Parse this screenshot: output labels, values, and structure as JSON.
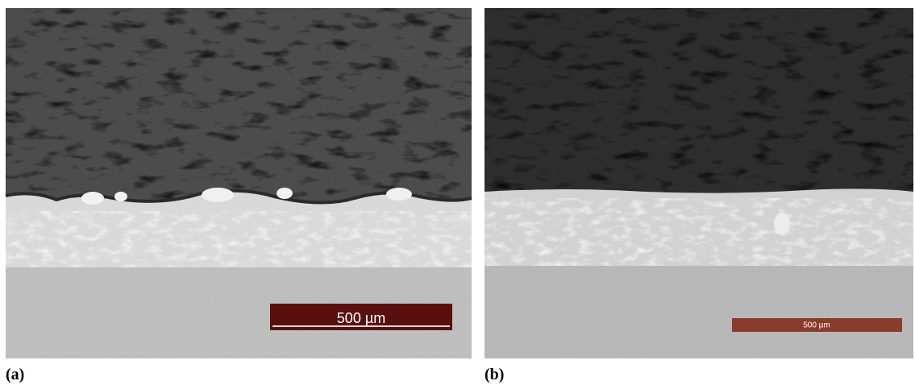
{
  "panels": [
    {
      "label": "(a)",
      "scale_bar": "500 µm"
    },
    {
      "label": "(b)",
      "scale_bar": "500 µm"
    }
  ]
}
